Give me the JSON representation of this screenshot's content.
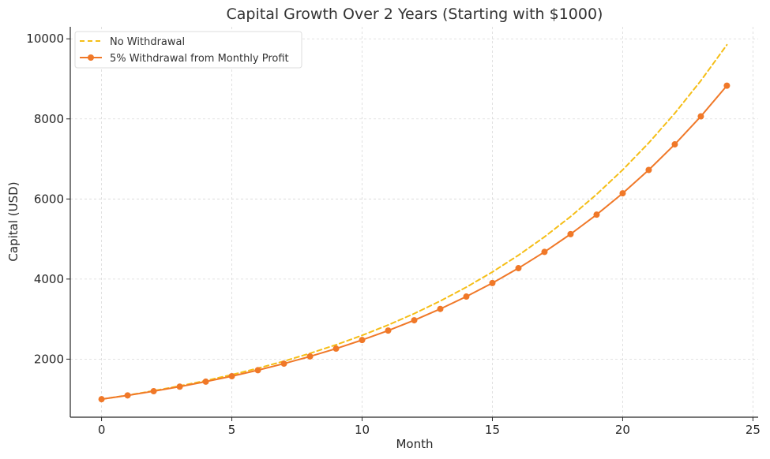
{
  "chart_data": {
    "type": "line",
    "title": "Capital Growth Over 2 Years (Starting with $1000)",
    "xlabel": "Month",
    "ylabel": "Capital (USD)",
    "xlim": [
      -1.2,
      25.2
    ],
    "ylim": [
      550,
      10300
    ],
    "xticks": [
      0,
      5,
      10,
      15,
      20,
      25
    ],
    "yticks": [
      2000,
      4000,
      6000,
      8000,
      10000
    ],
    "grid": true,
    "legend_position": "top-left",
    "x": [
      0,
      1,
      2,
      3,
      4,
      5,
      6,
      7,
      8,
      9,
      10,
      11,
      12,
      13,
      14,
      15,
      16,
      17,
      18,
      19,
      20,
      21,
      22,
      23,
      24
    ],
    "series": [
      {
        "name": "No Withdrawal",
        "color": "#f5be17",
        "style": "dashed",
        "marker": "none",
        "values": [
          1000,
          1100,
          1210,
          1331,
          1464,
          1611,
          1772,
          1949,
          2144,
          2358,
          2594,
          2853,
          3138,
          3452,
          3797,
          4177,
          4595,
          5054,
          5560,
          6116,
          6727,
          7400,
          8140,
          8954,
          9850
        ]
      },
      {
        "name": "5% Withdrawal from Monthly Profit",
        "color": "#f07828",
        "style": "solid",
        "marker": "circle",
        "values": [
          1000,
          1095,
          1199,
          1313,
          1438,
          1574,
          1724,
          1888,
          2067,
          2263,
          2478,
          2714,
          2971,
          3254,
          3563,
          3901,
          4272,
          4678,
          5122,
          5609,
          6142,
          6725,
          7364,
          8064,
          8830
        ]
      }
    ]
  }
}
